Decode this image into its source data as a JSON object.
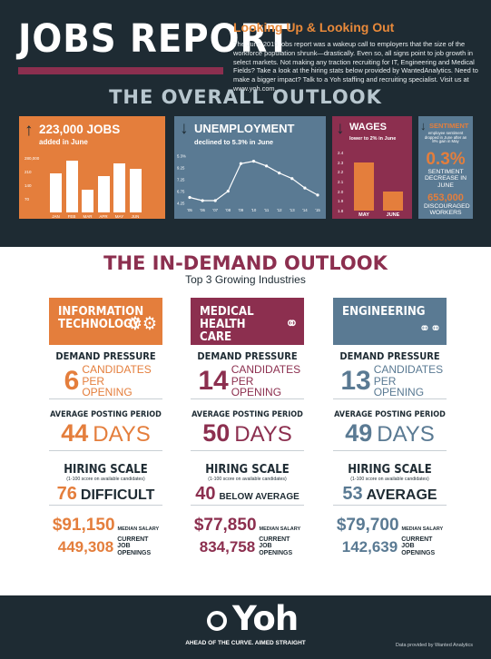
{
  "header": {
    "title": "JOBS REPORT",
    "subtitle": "Looking Up & Looking Out",
    "intro": "The June 2015 jobs report was a wakeup call to employers that the size of the workforce population shrunk—drastically. Even so, all signs point to job growth in select markets. Not making any traction recruiting for IT, Engineering and Medical Fields? Take a look at the hiring stats below provided by WantedAnalytics. Need to make a bigger impact? Talk to a Yoh staffing and recruiting specialist. Visit us at www.yoh.com.",
    "section_title": "THE OVERALL OUTLOOK"
  },
  "jobs": {
    "headline": "223,000 JOBS",
    "sub": "added in June",
    "y_ticks": [
      "280,000",
      "210",
      "140",
      "70"
    ],
    "chart_data": {
      "type": "bar",
      "categories": [
        "JAN",
        "FEB",
        "MAR",
        "APR",
        "MAY",
        "JUN"
      ],
      "values": [
        201000,
        266000,
        119000,
        187000,
        254000,
        223000
      ],
      "ylim": [
        0,
        280000
      ]
    }
  },
  "unemployment": {
    "headline": "UNEMPLOYMENT",
    "sub": "declined to 5.3% in June",
    "y_ticks": [
      "5.3%",
      "9.25",
      "7.25",
      "6.75",
      "4.25"
    ],
    "chart_data": {
      "type": "line",
      "categories": [
        "'05",
        "'06",
        "'07",
        "'08",
        "'09",
        "'10",
        "'11",
        "'12",
        "'13",
        "'14",
        "'15"
      ],
      "values": [
        5.0,
        4.6,
        4.6,
        5.8,
        9.3,
        9.6,
        9.0,
        8.1,
        7.4,
        6.2,
        5.3
      ],
      "ylim": [
        4.25,
        10.25
      ]
    }
  },
  "wages": {
    "headline": "WAGES",
    "sub": "lower to 2% in June",
    "y_ticks": [
      "2.4",
      "2.3",
      "2.2",
      "2.1",
      "2.0",
      "1.9",
      "1.8"
    ],
    "chart_data": {
      "type": "bar",
      "categories": [
        "MAY",
        "JUNE"
      ],
      "values": [
        2.3,
        2.0
      ],
      "ylim": [
        1.8,
        2.4
      ]
    }
  },
  "sentiment": {
    "headline": "SENTIMENT",
    "sub": "employee sentiment dropped in June after an 8% gain in May",
    "big": "0.3%",
    "big_label": "SENTIMENT DECREASE IN JUNE",
    "workers": "653,000",
    "workers_label": "DISCOURAGED WORKERS"
  },
  "indemand": {
    "title": "THE IN-DEMAND OUTLOOK",
    "subtitle": "Top 3 Growing Industries",
    "labels": {
      "demand": "DEMAND PRESSURE",
      "candidates": "CANDIDATES PER OPENING",
      "posting": "AVERAGE POSTING PERIOD",
      "days": "DAYS",
      "hiring": "HIRING SCALE",
      "hiring_sub": "(1-100 score on available candidates)",
      "median": "MEDIAN SALARY",
      "openings": "CURRENT JOB OPENINGS"
    },
    "industries": [
      {
        "name": "INFORMATION TECHNOLOGY",
        "icon": "gears-icon",
        "demand": "6",
        "days": "44",
        "score": "76",
        "score_label": "DIFFICULT",
        "salary": "$91,150",
        "openings": "449,308"
      },
      {
        "name": "MEDICAL HEALTH CARE",
        "icon": "stethoscope-icon",
        "demand": "14",
        "days": "50",
        "score": "40",
        "score_label": "BELOW AVERAGE",
        "salary": "$77,850",
        "openings": "834,758"
      },
      {
        "name": "ENGINEERING",
        "icon": "chain-icon",
        "demand": "13",
        "days": "49",
        "score": "53",
        "score_label": "AVERAGE",
        "salary": "$79,700",
        "openings": "142,639"
      }
    ]
  },
  "footer": {
    "logo": "Yoh",
    "tagline": "AHEAD OF THE CURVE. AIMED STRAIGHT",
    "credit": "Data provided by Wanted Analytics"
  },
  "colors": {
    "navy": "#1e2b33",
    "orange": "#e47e3c",
    "maroon": "#8c2f4f",
    "steel": "#5a7a93"
  }
}
